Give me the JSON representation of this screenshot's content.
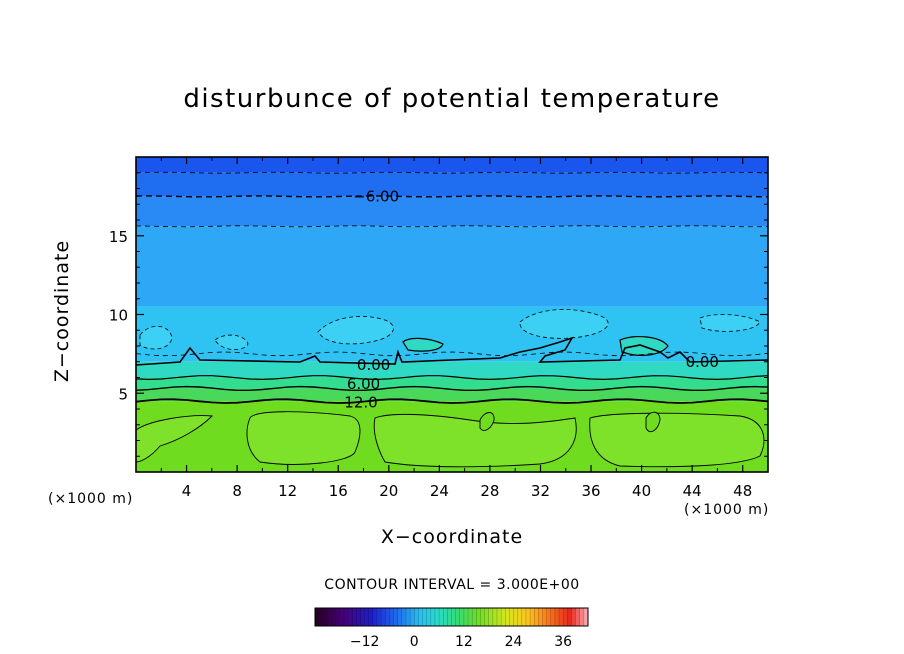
{
  "chart_data": {
    "type": "heatmap",
    "title": "disturbunce of potential temperature",
    "xlabel": "X−coordinate",
    "ylabel": "Z−coordinate",
    "x_unit_note": "(×1000 m)",
    "x_ticks": [
      "4",
      "8",
      "12",
      "16",
      "20",
      "24",
      "28",
      "32",
      "36",
      "40",
      "44",
      "48"
    ],
    "y_ticks": [
      "5",
      "10",
      "15"
    ],
    "xlim": [
      0,
      50
    ],
    "ylim": [
      0,
      20
    ],
    "contour_labels": [
      {
        "text": "−6.00",
        "x": 19.0,
        "z": 17.5
      },
      {
        "text": "0.00",
        "x": 18.8,
        "z": 6.8
      },
      {
        "text": "0.00",
        "x": 44.8,
        "z": 7.0
      },
      {
        "text": "6.00",
        "x": 18.0,
        "z": 5.6
      },
      {
        "text": "12.0",
        "x": 17.8,
        "z": 4.4
      }
    ],
    "contour_interval": "CONTOUR INTERVAL = 3.000E+00",
    "colorbar": {
      "ticks": [
        "−12",
        "0",
        "12",
        "24",
        "36"
      ],
      "tick_values": [
        -12,
        0,
        12,
        24,
        36
      ],
      "range": [
        -24,
        42
      ]
    },
    "layers": [
      {
        "z_bottom": 19.0,
        "z_top": 20.0,
        "color": "#1a55ee"
      },
      {
        "z_bottom": 17.5,
        "z_top": 19.0,
        "color": "#1f6ef2"
      },
      {
        "z_bottom": 15.6,
        "z_top": 17.5,
        "color": "#2a8af5"
      },
      {
        "z_bottom": 10.5,
        "z_top": 15.6,
        "color": "#2ea8f6"
      },
      {
        "z_bottom": 7.0,
        "z_top": 10.5,
        "color": "#2fc3f4"
      },
      {
        "z_bottom": 6.0,
        "z_top": 7.0,
        "color": "#2fd9c4"
      },
      {
        "z_bottom": 5.3,
        "z_top": 6.0,
        "color": "#33dd90"
      },
      {
        "z_bottom": 4.5,
        "z_top": 5.3,
        "color": "#4ad85a"
      },
      {
        "z_bottom": 0.0,
        "z_top": 4.5,
        "color": "#6fdc20"
      }
    ]
  }
}
